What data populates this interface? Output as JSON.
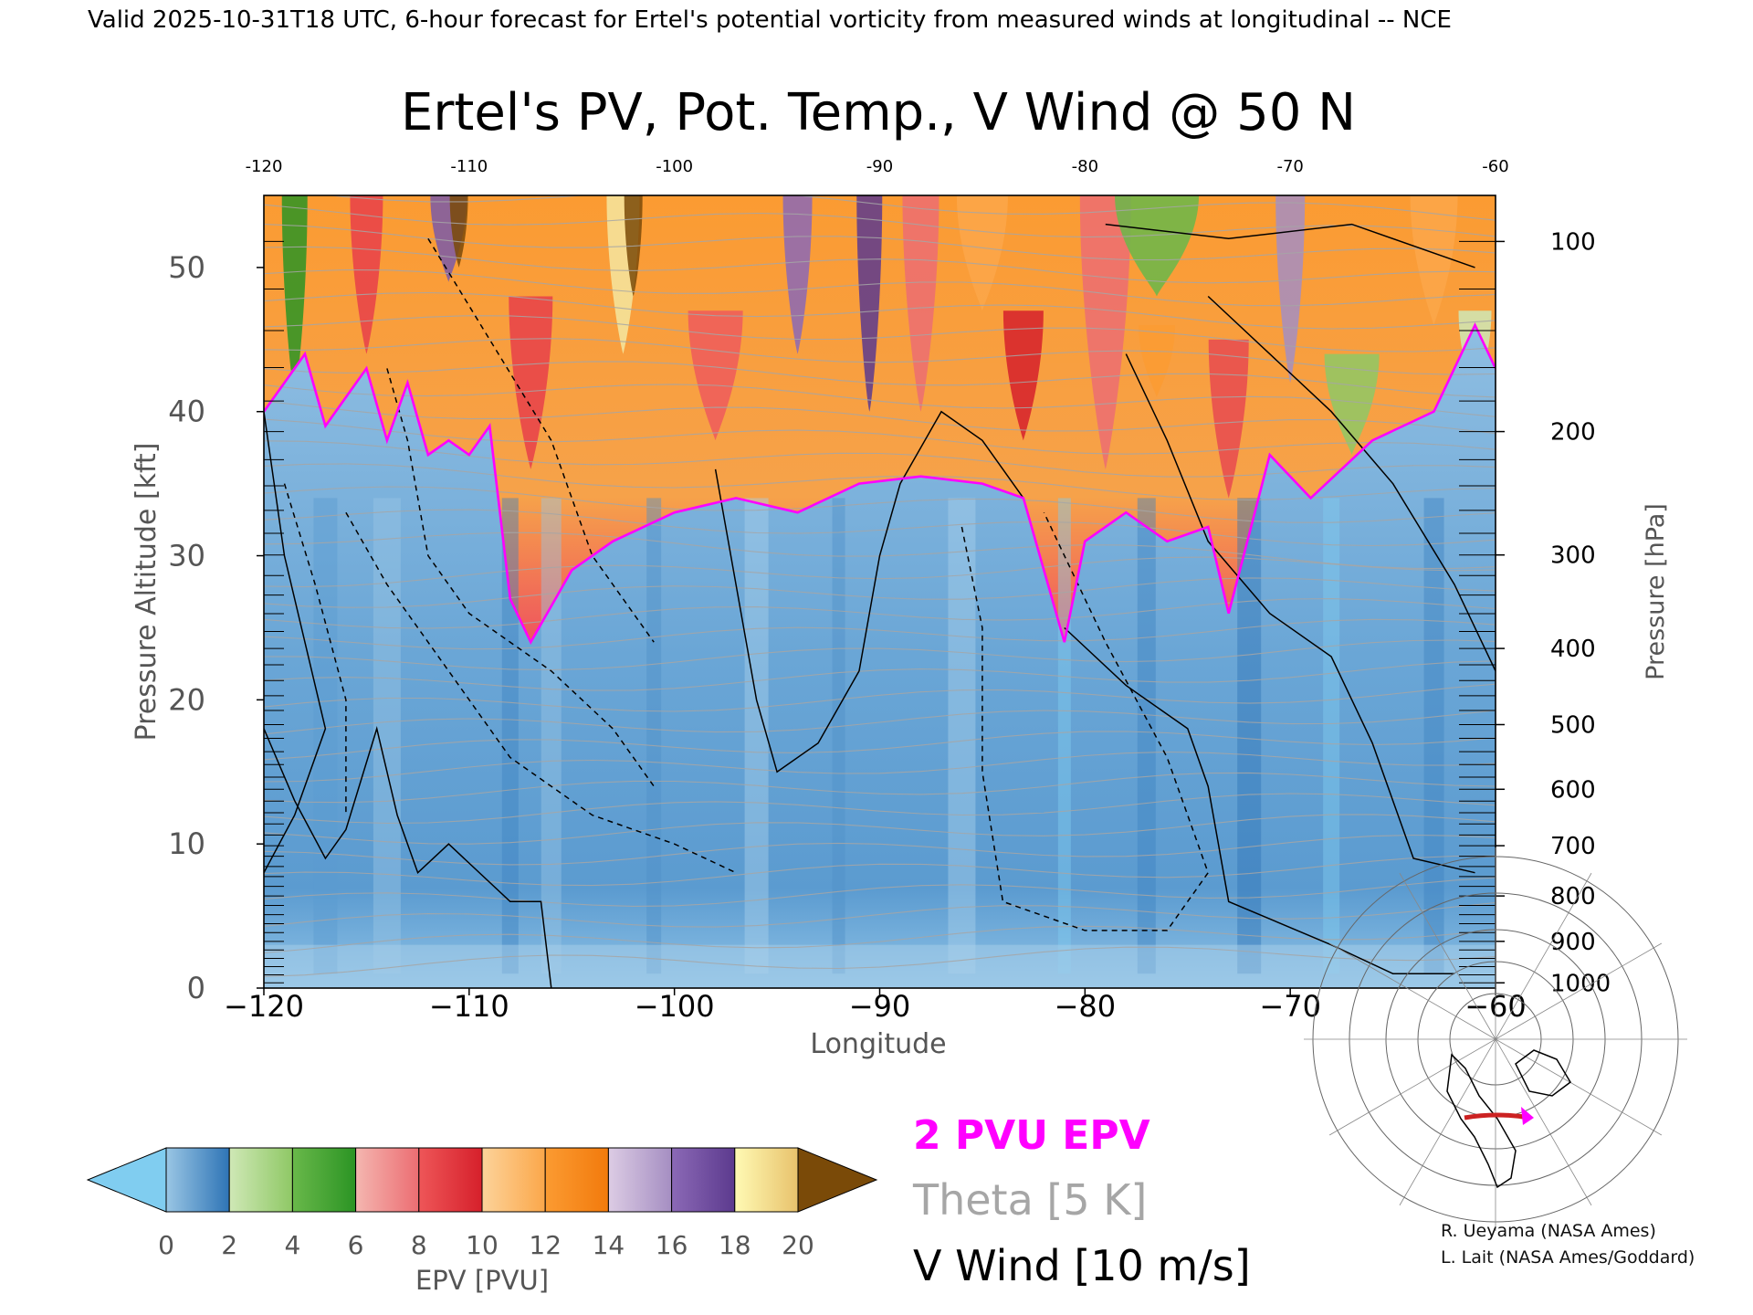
{
  "header": {
    "valid_line": "Valid 2025-10-31T18 UTC, 6-hour forecast for Ertel's potential vorticity from measured winds at longitudinal -- NCE"
  },
  "chart_data": {
    "type": "heatmap",
    "title": "Ertel's PV, Pot. Temp., V Wind @ 50 N",
    "xlabel": "Longitude",
    "ylabel": "Pressure Altitude [kft]",
    "y2label": "Pressure [hPa]",
    "xlim": [
      -120,
      -60
    ],
    "ylim": [
      0,
      55
    ],
    "x_ticks": [
      -120,
      -110,
      -100,
      -90,
      -80,
      -70,
      -60
    ],
    "x_tick_labels": [
      "−120",
      "−110",
      "−100",
      "−90",
      "−80",
      "−70",
      "−60"
    ],
    "top_tick_labels": [
      "-120",
      "-110",
      "-100",
      "-90",
      "-80",
      "-70",
      "-60"
    ],
    "y_ticks": [
      0,
      10,
      20,
      30,
      40,
      50
    ],
    "pressure_ticks": [
      {
        "hpa": 100,
        "label": "100"
      },
      {
        "hpa": 200,
        "label": "200"
      },
      {
        "hpa": 300,
        "label": "300"
      },
      {
        "hpa": 400,
        "label": "400"
      },
      {
        "hpa": 500,
        "label": "500"
      },
      {
        "hpa": 600,
        "label": "600"
      },
      {
        "hpa": 700,
        "label": "700"
      },
      {
        "hpa": 800,
        "label": "800"
      },
      {
        "hpa": 900,
        "label": "900"
      },
      {
        "hpa": 1000,
        "label": "1000"
      }
    ],
    "tropopause_2pvu_kft": [
      {
        "lon": -120,
        "alt": 40
      },
      {
        "lon": -118,
        "alt": 44
      },
      {
        "lon": -117,
        "alt": 39
      },
      {
        "lon": -115,
        "alt": 43
      },
      {
        "lon": -114,
        "alt": 38
      },
      {
        "lon": -113,
        "alt": 42
      },
      {
        "lon": -112,
        "alt": 37
      },
      {
        "lon": -111,
        "alt": 38
      },
      {
        "lon": -110,
        "alt": 37
      },
      {
        "lon": -109,
        "alt": 39
      },
      {
        "lon": -108,
        "alt": 27
      },
      {
        "lon": -107,
        "alt": 24
      },
      {
        "lon": -105,
        "alt": 29
      },
      {
        "lon": -103,
        "alt": 31
      },
      {
        "lon": -100,
        "alt": 33
      },
      {
        "lon": -97,
        "alt": 34
      },
      {
        "lon": -94,
        "alt": 33
      },
      {
        "lon": -91,
        "alt": 35
      },
      {
        "lon": -88,
        "alt": 35.5
      },
      {
        "lon": -85,
        "alt": 35
      },
      {
        "lon": -83,
        "alt": 34
      },
      {
        "lon": -81,
        "alt": 24
      },
      {
        "lon": -80,
        "alt": 31
      },
      {
        "lon": -78,
        "alt": 33
      },
      {
        "lon": -76,
        "alt": 31
      },
      {
        "lon": -74,
        "alt": 32
      },
      {
        "lon": -73,
        "alt": 26
      },
      {
        "lon": -71,
        "alt": 37
      },
      {
        "lon": -69,
        "alt": 34
      },
      {
        "lon": -66,
        "alt": 38
      },
      {
        "lon": -63,
        "alt": 40
      },
      {
        "lon": -61,
        "alt": 46
      },
      {
        "lon": -60,
        "alt": 43
      }
    ],
    "colorbar": {
      "label": "EPV [PVU]",
      "min": 0,
      "max": 20,
      "ticks": [
        "0",
        "2",
        "4",
        "6",
        "8",
        "10",
        "12",
        "14",
        "16",
        "18",
        "20"
      ],
      "under_color": "#80cdf0",
      "over_color": "#7a4a08",
      "segments": [
        {
          "from": 0,
          "to": 2,
          "colors": [
            "#9ac6e4",
            "#2e74b6"
          ]
        },
        {
          "from": 2,
          "to": 4,
          "colors": [
            "#cfe8b6",
            "#8fc865"
          ]
        },
        {
          "from": 4,
          "to": 6,
          "colors": [
            "#69b84a",
            "#2b9424"
          ]
        },
        {
          "from": 6,
          "to": 8,
          "colors": [
            "#f4b6b0",
            "#ec6d72"
          ]
        },
        {
          "from": 8,
          "to": 10,
          "colors": [
            "#ee5658",
            "#d6202b"
          ]
        },
        {
          "from": 10,
          "to": 12,
          "colors": [
            "#fcd39a",
            "#fba74a"
          ]
        },
        {
          "from": 12,
          "to": 14,
          "colors": [
            "#fb9b32",
            "#f27a0c"
          ]
        },
        {
          "from": 14,
          "to": 16,
          "colors": [
            "#dccce4",
            "#a58ec2"
          ]
        },
        {
          "from": 16,
          "to": 18,
          "colors": [
            "#8b69b6",
            "#5c3a8e"
          ]
        },
        {
          "from": 18,
          "to": 20,
          "colors": [
            "#fffab4",
            "#e8c26c"
          ]
        }
      ]
    },
    "legend": {
      "epv": "2 PVU EPV",
      "theta": "Theta [5 K]",
      "vwind": "V Wind [10 m/s]",
      "epv_color": "#ff00ff",
      "theta_color": "#a6a6a6",
      "vwind_color": "#000000"
    }
  },
  "credits": {
    "line1": "R. Ueyama (NASA Ames)",
    "line2": "L. Lait (NASA Ames/Goddard)"
  }
}
